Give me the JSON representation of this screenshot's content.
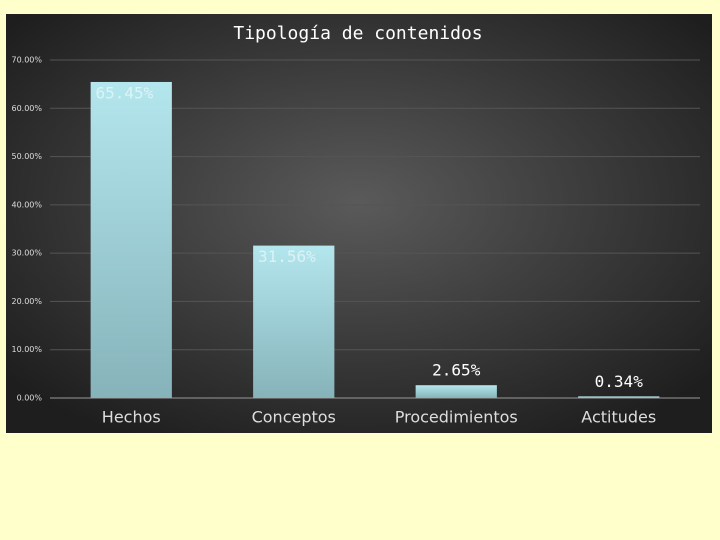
{
  "chart_data": {
    "type": "bar",
    "title": "Tipología de contenidos",
    "categories": [
      "Hechos",
      "Conceptos",
      "Procedimientos",
      "Actitudes"
    ],
    "values": [
      65.45,
      31.56,
      2.65,
      0.34
    ],
    "value_labels": [
      "65.45%",
      "31.56%",
      "2.65%",
      "0.34%"
    ],
    "color": "#a9dde5",
    "ylim": [
      0,
      70
    ],
    "yticks": [
      {
        "value": 0,
        "label": "0.00%"
      },
      {
        "value": 10,
        "label": "10.00%"
      },
      {
        "value": 20,
        "label": "20.00%"
      },
      {
        "value": 30,
        "label": "30.00%"
      },
      {
        "value": 40,
        "label": "40.00%"
      },
      {
        "value": 50,
        "label": "50.00%"
      },
      {
        "value": 60,
        "label": "60.00%"
      },
      {
        "value": 70,
        "label": "70.00%"
      }
    ],
    "grid": true
  }
}
